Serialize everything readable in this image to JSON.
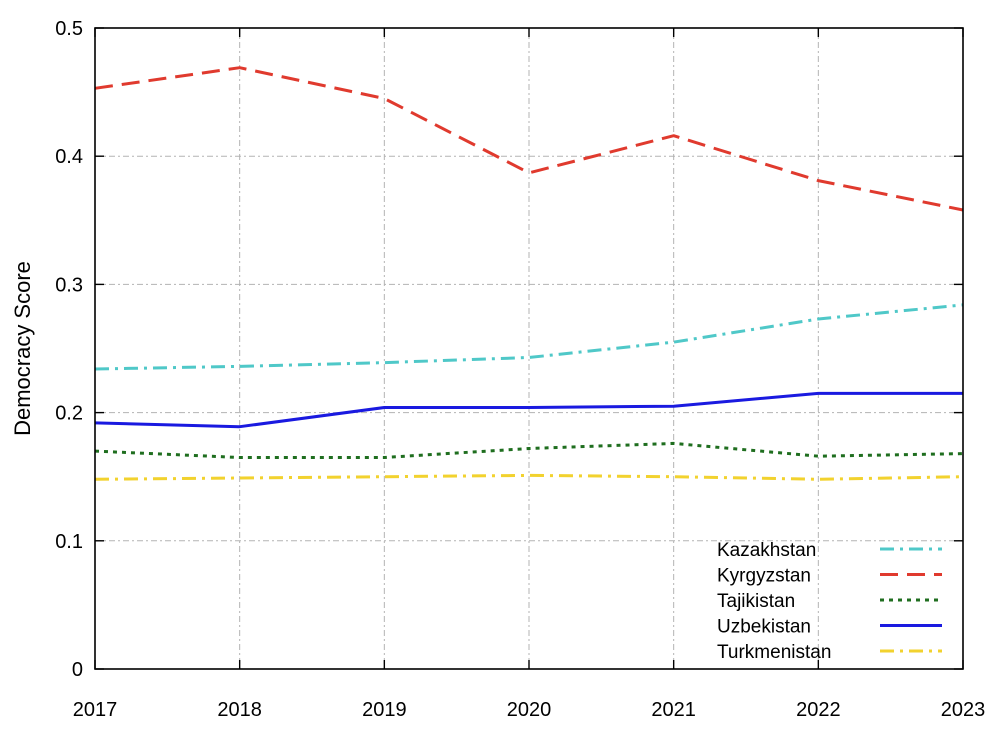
{
  "chart_data": {
    "type": "line",
    "title": "",
    "xlabel": "",
    "ylabel": "Democracy Score",
    "x": [
      2017,
      2018,
      2019,
      2020,
      2021,
      2022,
      2023
    ],
    "xlim": [
      2017,
      2023
    ],
    "ylim": [
      0,
      0.5
    ],
    "yticks": [
      0,
      0.1,
      0.2,
      0.3,
      0.4,
      0.5
    ],
    "ytick_labels": [
      "0",
      "0.1",
      "0.2",
      "0.3",
      "0.4",
      "0.5"
    ],
    "grid": true,
    "legend_position": "bottom-right",
    "series": [
      {
        "name": "Kazakhstan",
        "color": "#4fc8c8",
        "dash": "dash-dot",
        "values": [
          0.234,
          0.236,
          0.239,
          0.243,
          0.255,
          0.273,
          0.284
        ]
      },
      {
        "name": "Kyrgyzstan",
        "color": "#e03a2e",
        "dash": "dash",
        "values": [
          0.453,
          0.469,
          0.445,
          0.387,
          0.416,
          0.381,
          0.358
        ]
      },
      {
        "name": "Tajikistan",
        "color": "#1f6e1f",
        "dash": "dot",
        "values": [
          0.17,
          0.165,
          0.165,
          0.172,
          0.176,
          0.166,
          0.168
        ]
      },
      {
        "name": "Uzbekistan",
        "color": "#1a1ae0",
        "dash": "solid",
        "values": [
          0.192,
          0.189,
          0.204,
          0.204,
          0.205,
          0.215,
          0.215
        ]
      },
      {
        "name": "Turkmenistan",
        "color": "#f2d22e",
        "dash": "dash-dot",
        "values": [
          0.148,
          0.149,
          0.15,
          0.151,
          0.15,
          0.148,
          0.15
        ]
      }
    ]
  }
}
